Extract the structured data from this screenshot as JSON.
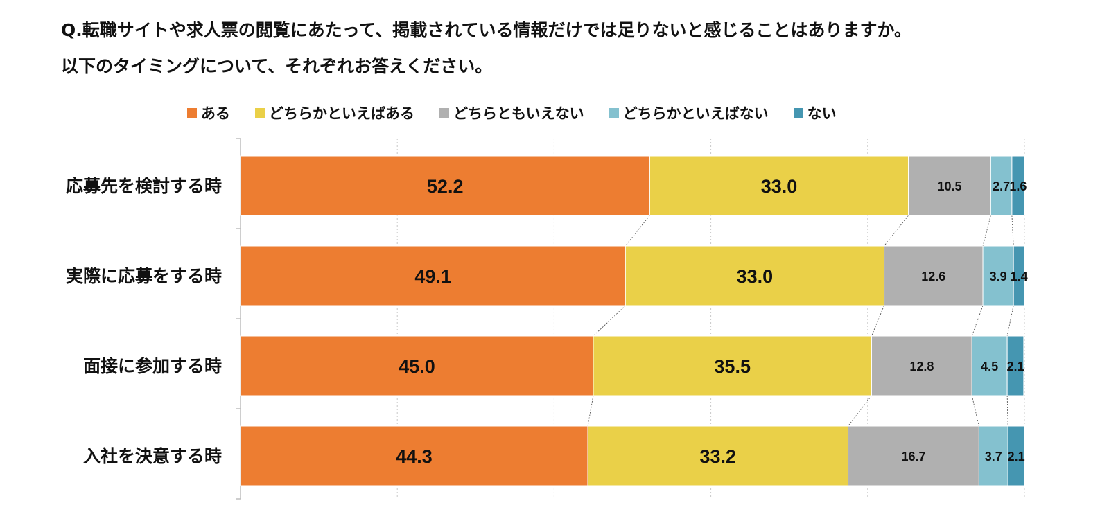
{
  "question": {
    "line1": "Q.転職サイトや求人票の閲覧にあたって、掲載されている情報だけでは足りないと感じることはありますか。",
    "line2": "以下のタイミングについて、それぞれお答えください。"
  },
  "chart_data": {
    "type": "bar",
    "orientation": "horizontal",
    "stacked": true,
    "percent_stacked": true,
    "xlim": [
      0,
      100
    ],
    "grid": true,
    "legend_position": "top",
    "categories": [
      "応募先を検討する時",
      "実際に応募をする時",
      "面接に参加する時",
      "入社を決意する時"
    ],
    "series": [
      {
        "name": "ある",
        "color": "#ed7d31",
        "values": [
          52.2,
          49.1,
          45.0,
          44.3
        ]
      },
      {
        "name": "どちらかといえばある",
        "color": "#ead048",
        "values": [
          33.0,
          33.0,
          35.5,
          33.2
        ]
      },
      {
        "name": "どちらともいえない",
        "color": "#b0b0b0",
        "values": [
          10.5,
          12.6,
          12.8,
          16.7
        ]
      },
      {
        "name": "どちらかといえばない",
        "color": "#84c1cf",
        "values": [
          2.7,
          3.9,
          4.5,
          3.7
        ]
      },
      {
        "name": "ない",
        "color": "#4596b1",
        "values": [
          1.6,
          1.4,
          2.1,
          2.1
        ]
      }
    ]
  }
}
